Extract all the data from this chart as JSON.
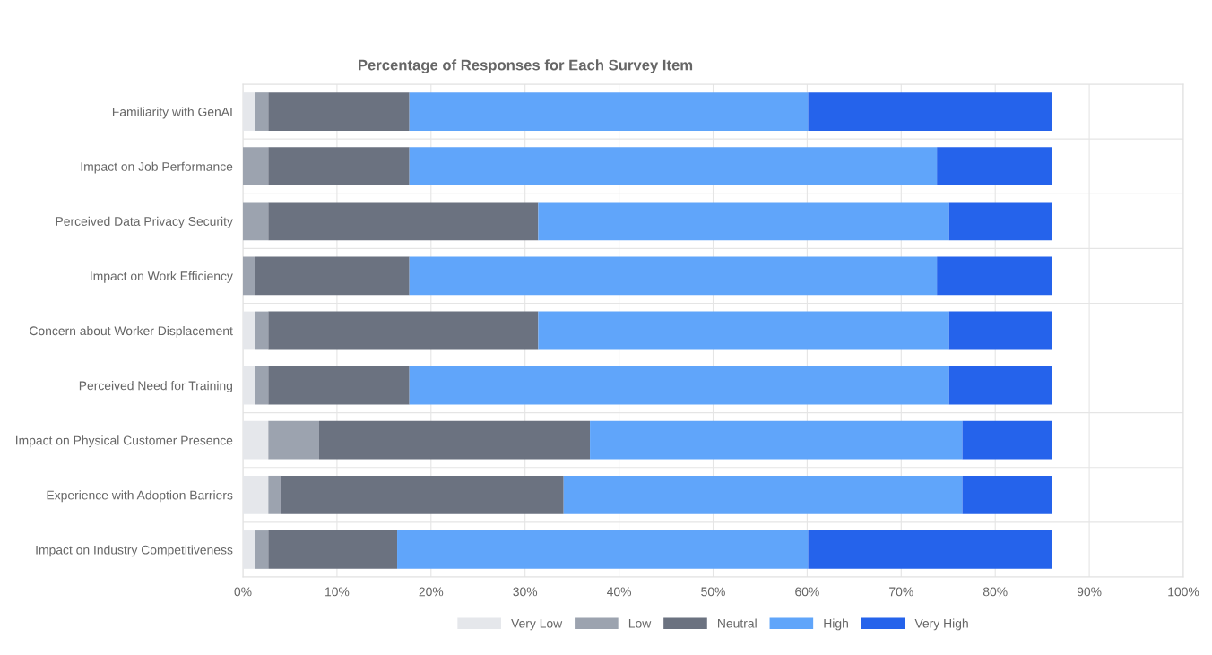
{
  "chart_data": {
    "type": "bar",
    "orientation": "horizontal",
    "stacked": true,
    "title": "Percentage of Responses for Each Survey Item",
    "categories": [
      "Familiarity with GenAI",
      "Impact on Job Performance",
      "Perceived Data Privacy Security",
      "Impact on Work Efficiency",
      "Concern about Worker Displacement",
      "Perceived Need for Training",
      "Impact on Physical Customer Presence",
      "Experience with Adoption Barriers",
      "Impact on Industry Competitiveness"
    ],
    "series": [
      {
        "name": "Very Low",
        "color": "#e5e7eb",
        "values": [
          1.3,
          0,
          0,
          0,
          1.3,
          1.3,
          2.7,
          2.7,
          1.3
        ]
      },
      {
        "name": "Low",
        "color": "#9ca3af",
        "values": [
          1.4,
          2.7,
          2.7,
          1.3,
          1.4,
          1.4,
          5.4,
          1.3,
          1.4
        ]
      },
      {
        "name": "Neutral",
        "color": "#6b7280",
        "values": [
          15.0,
          15.0,
          28.7,
          16.4,
          28.7,
          15.0,
          28.8,
          30.1,
          13.7
        ]
      },
      {
        "name": "High",
        "color": "#60a5fa",
        "values": [
          42.4,
          56.1,
          43.7,
          56.1,
          43.7,
          57.4,
          39.6,
          42.4,
          43.7
        ]
      },
      {
        "name": "Very High",
        "color": "#2563eb",
        "values": [
          25.9,
          12.2,
          10.9,
          12.2,
          10.9,
          10.9,
          9.5,
          9.5,
          25.9
        ]
      }
    ],
    "xlim": [
      0,
      100
    ],
    "xticks": [
      {
        "value": 0,
        "label": "0%"
      },
      {
        "value": 10,
        "label": "10%"
      },
      {
        "value": 20,
        "label": "20%"
      },
      {
        "value": 30,
        "label": "30%"
      },
      {
        "value": 40,
        "label": "40%"
      },
      {
        "value": 50,
        "label": "50%"
      },
      {
        "value": 60,
        "label": "60%"
      },
      {
        "value": 70,
        "label": "70%"
      },
      {
        "value": 80,
        "label": "80%"
      },
      {
        "value": 90,
        "label": "90%"
      },
      {
        "value": 100,
        "label": "100%"
      }
    ],
    "grid": true,
    "legend": "bottom"
  }
}
